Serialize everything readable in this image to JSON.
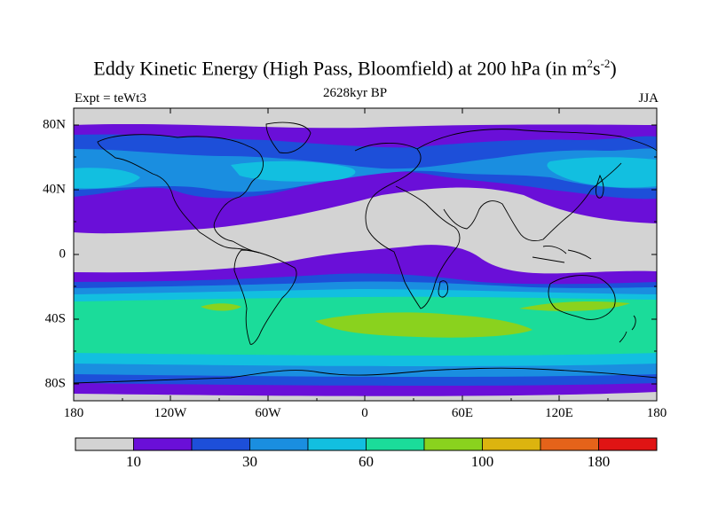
{
  "figure": {
    "title_main": "Eddy Kinetic Energy (High Pass, Bloomfield) at 200 hPa (in m",
    "title_sup1": "2",
    "title_mid": "s",
    "title_sup2": "-2",
    "title_end": ")",
    "subtitle": "2628kyr BP",
    "left_label": "Expt = teWt3",
    "right_label": "JJA"
  },
  "axes": {
    "lat_labels": [
      "80N",
      "40N",
      "0",
      "40S",
      "80S"
    ],
    "lon_labels": [
      "180",
      "120W",
      "60W",
      "0",
      "60E",
      "120E",
      "180"
    ]
  },
  "colorbar": {
    "colors": [
      "#d3d3d3",
      "#6a0fd8",
      "#1d4fd9",
      "#1a8ee0",
      "#12bfe0",
      "#1bdc9a",
      "#8ad21e",
      "#dcb40f",
      "#e5631a",
      "#e01414"
    ],
    "labels": [
      "10",
      "30",
      "60",
      "100",
      "180"
    ]
  }
}
